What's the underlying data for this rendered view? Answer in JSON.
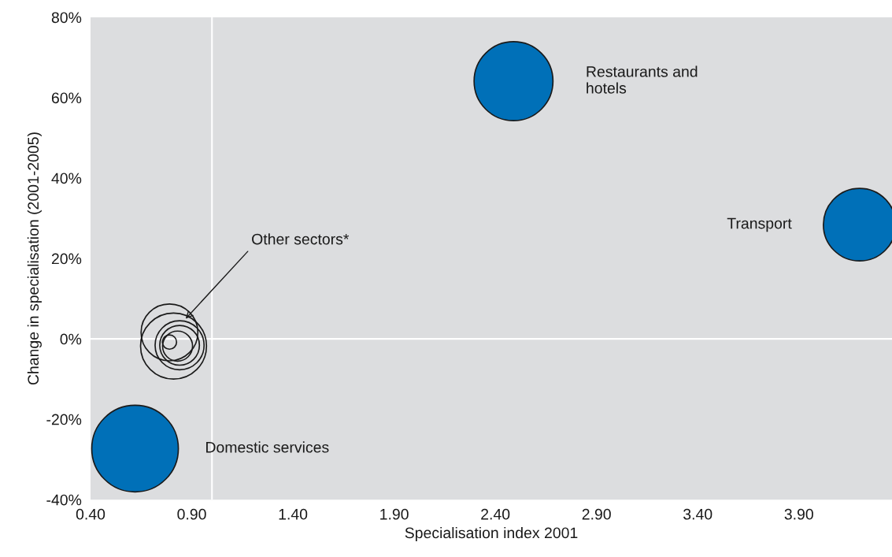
{
  "chart_data": {
    "type": "bubble",
    "xlabel": "Specialisation index 2001",
    "ylabel": "Change in specialisation (2001-2005)",
    "series": [
      {
        "color": "#0070b8",
        "x": [
          2.49,
          4.2,
          0.62
        ],
        "values": [
          64.1,
          28.4,
          -27.3
        ],
        "sizes": [
          0.83,
          0.7,
          1
        ]
      },
      {
        "color": null,
        "x": [
          0.79,
          0.81,
          0.84,
          0.84,
          0.83,
          0.79
        ],
        "values": [
          1.6,
          -1.8,
          -1.6,
          -1.6,
          -1.8,
          -0.8
        ],
        "sizes": [
          0.43,
          0.58,
          0.32,
          0.21,
          0.12,
          0.027
        ]
      }
    ],
    "annotations": [
      "Restaurants and\nhotels",
      "Transport",
      "Domestic services",
      {
        "text": "Other sectors*",
        "x": 0.87,
        "y": 5
      }
    ],
    "ref_lines": [
      {
        "axis": "x",
        "value": 1.0,
        "color": "#ffffff"
      },
      {
        "axis": "y",
        "value": 0,
        "color": "#ffffff"
      }
    ],
    "xlim": [
      0.4,
      4.36
    ],
    "ylim": [
      -40,
      80
    ],
    "xticks": [
      {
        "value": 0.4,
        "label": "0.40"
      },
      {
        "value": 0.9,
        "label": "0.90"
      },
      {
        "value": 1.4,
        "label": "1.40"
      },
      {
        "value": 1.9,
        "label": "1.90"
      },
      {
        "value": 2.4,
        "label": "2.40"
      },
      {
        "value": 2.9,
        "label": "2.90"
      },
      {
        "value": 3.4,
        "label": "3.40"
      },
      {
        "value": 3.9,
        "label": "3.90"
      }
    ],
    "yticks": [
      {
        "value": -40,
        "label": "-40%"
      },
      {
        "value": -20,
        "label": "-20%"
      },
      {
        "value": 0,
        "label": "0%"
      },
      {
        "value": 20,
        "label": "20%"
      },
      {
        "value": 40,
        "label": "40%"
      },
      {
        "value": 60,
        "label": "60%"
      },
      {
        "value": 80,
        "label": "80%"
      }
    ],
    "grid": false,
    "legend": false
  }
}
